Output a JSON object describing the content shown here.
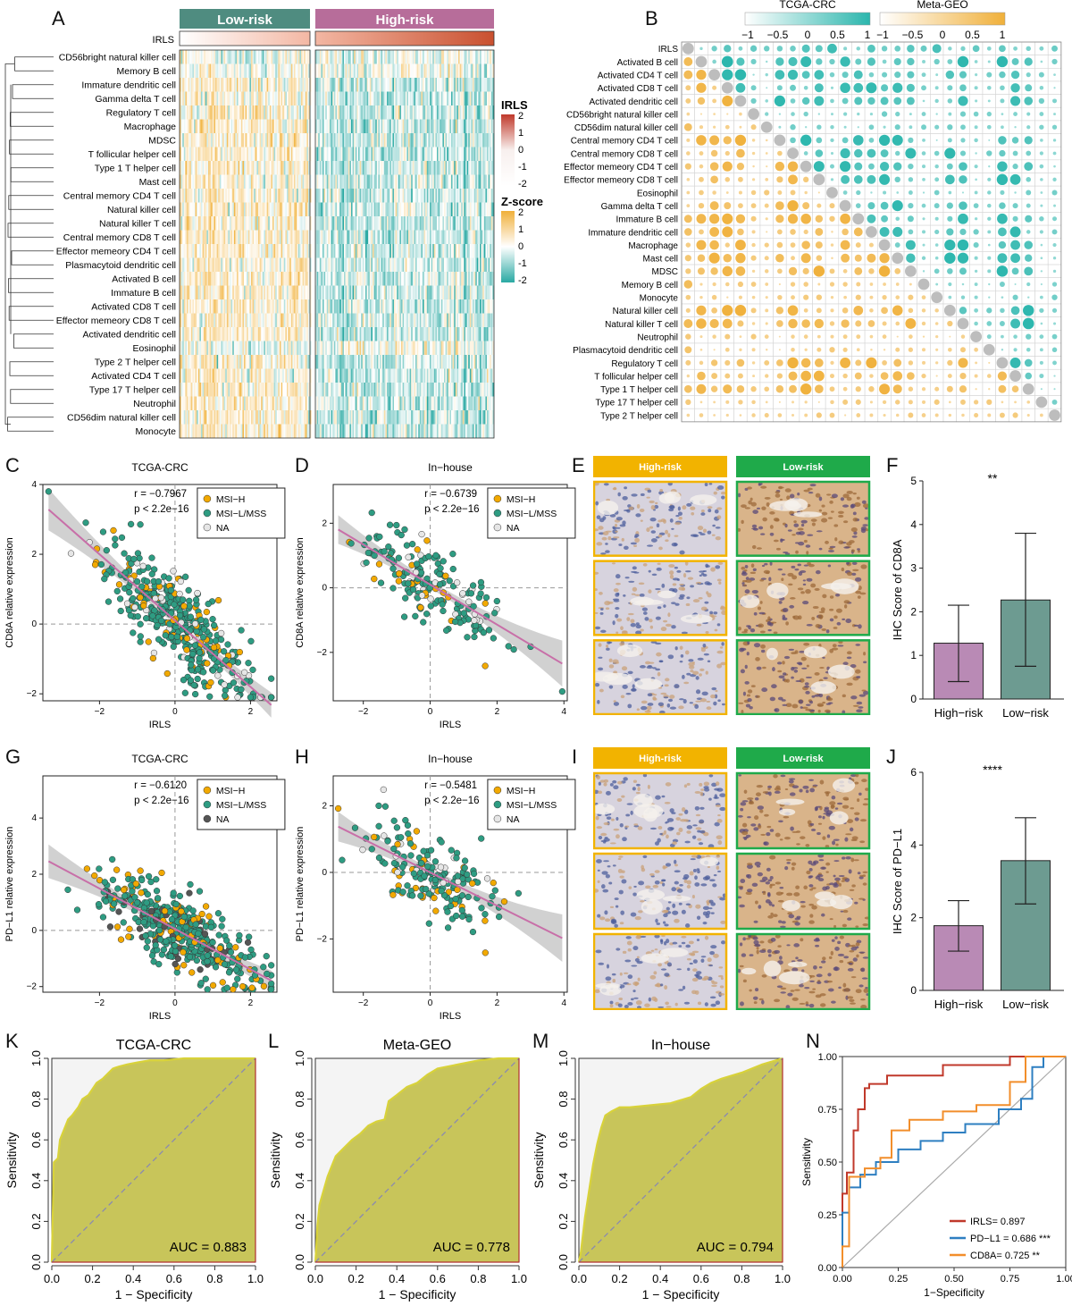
{
  "panelA": {
    "letter": "A",
    "groups": [
      "Low-risk",
      "High-risk"
    ],
    "group_colors": [
      "#4f8c80",
      "#b76d9a"
    ],
    "annotation_label": "IRLS",
    "rows": [
      "CD56bright natural killer cell",
      "Memory B cell",
      "Immature dendritic cell",
      "Gamma delta T cell",
      "Regulatory T cell",
      "Macrophage",
      "MDSC",
      "T follicular helper cell",
      "Type 1 T helper cell",
      "Mast cell",
      "Central memory CD4 T cell",
      "Natural killer cell",
      "Natural killer T cell",
      "Central memory CD8 T cell",
      "Effector memeory CD4 T cell",
      "Plasmacytoid dendritic cell",
      "Activated B cell",
      "Immature  B cell",
      "Activated CD8 T cell",
      "Effector memeory CD8 T cell",
      "Activated dendritic cell",
      "Eosinophil",
      "Type 2 T helper cell",
      "Activated CD4 T cell",
      "Type 17 T helper cell",
      "Neutrophil",
      "CD56dim natural killer cell",
      "Monocyte"
    ],
    "legend_irls": {
      "title": "IRLS",
      "ticks": [
        "2",
        "1",
        "0",
        "-1",
        "-2"
      ]
    },
    "legend_z": {
      "title": "Z-score",
      "ticks": [
        "2",
        "1",
        "0",
        "-1",
        "-2"
      ]
    }
  },
  "panelB": {
    "letter": "B",
    "legend1": {
      "title": "TCGA-CRC",
      "ticks": [
        "−1",
        "−0.5",
        "0",
        "0.5",
        "1"
      ],
      "color": "#2bb6ad"
    },
    "legend2": {
      "title": "Meta-GEO",
      "ticks": [
        "−1",
        "−0.5",
        "0",
        "0.5",
        "1"
      ],
      "color": "#f0b03a"
    },
    "rows": [
      "IRLS",
      "Activated B cell",
      "Activated CD4 T cell",
      "Activated CD8 T cell",
      "Activated dendritic cell",
      "CD56bright natural killer cell",
      "CD56dim natural killer cell",
      "Central memory CD4 T cell",
      "Central memory CD8 T cell",
      "Effector memeory CD4 T cell",
      "Effector memeory CD8 T cell",
      "Eosinophil",
      "Gamma delta T cell",
      "Immature  B cell",
      "Immature dendritic cell",
      "Macrophage",
      "Mast cell",
      "MDSC",
      "Memory B cell",
      "Monocyte",
      "Natural killer cell",
      "Natural killer T cell",
      "Neutrophil",
      "Plasmacytoid dendritic cell",
      "Regulatory T cell",
      "T follicular helper cell",
      "Type 1 T helper cell",
      "Type 17 T helper cell",
      "Type 2 T helper cell"
    ]
  },
  "chart_data": [
    {
      "id": "C",
      "type": "scatter",
      "title": "TCGA-CRC",
      "xlabel": "IRLS",
      "ylabel": "CD8A relative expression",
      "stat_r": "r = −0.7967",
      "stat_p": "p < 2.2e−16",
      "xlim": [
        -3.5,
        2.7
      ],
      "ylim": [
        -2.2,
        4
      ],
      "xticks": [
        -2,
        0,
        2
      ],
      "yticks": [
        -2,
        0,
        2,
        4
      ],
      "legend": [
        "MSI−H",
        "MSI−L/MSS",
        "NA"
      ],
      "legend_colors": [
        "#f2a900",
        "#2e9c82",
        "#e6e6e6"
      ],
      "fit": {
        "slope": -0.95,
        "intercept": 0.1
      },
      "n": 420,
      "seed": 11
    },
    {
      "id": "D",
      "type": "scatter",
      "title": "In−house",
      "xlabel": "IRLS",
      "ylabel": "CD8A relative expression",
      "stat_r": "r = −0.6739",
      "stat_p": "p < 2.2e−16",
      "xlim": [
        -2.9,
        4.1
      ],
      "ylim": [
        -3.5,
        3.2
      ],
      "xticks": [
        -2,
        0,
        2,
        4
      ],
      "yticks": [
        -2,
        0,
        2
      ],
      "legend": [
        "MSI−H",
        "MSI−L/MSS",
        "NA"
      ],
      "legend_colors": [
        "#f2a900",
        "#2e9c82",
        "#e6e6e6"
      ],
      "fit": {
        "slope": -0.62,
        "intercept": 0.1
      },
      "n": 190,
      "seed": 23
    },
    {
      "id": "F",
      "type": "bar",
      "ylabel": "IHC Score of CD8A",
      "categories": [
        "High−risk",
        "Low−risk"
      ],
      "values": [
        1.28,
        2.27
      ],
      "errors": [
        [
          0.4,
          2.15
        ],
        [
          0.75,
          3.8
        ]
      ],
      "ylim": [
        0,
        5
      ],
      "yticks": [
        0,
        1,
        2,
        3,
        4,
        5
      ],
      "colors": [
        "#b98ab5",
        "#6d9b91"
      ],
      "significance": "**"
    },
    {
      "id": "G",
      "type": "scatter",
      "title": "TCGA-CRC",
      "xlabel": "IRLS",
      "ylabel": "PD−L1 relative expression",
      "stat_r": "r = −0.6120",
      "stat_p": "p < 2.2e−16",
      "xlim": [
        -3.5,
        2.7
      ],
      "ylim": [
        -2.2,
        5.5
      ],
      "xticks": [
        -2,
        0,
        2
      ],
      "yticks": [
        -2,
        0,
        2,
        4
      ],
      "legend": [
        "MSI−H",
        "MSI−L/MSS",
        "NA"
      ],
      "legend_colors": [
        "#f2a900",
        "#2e9c82",
        "#555555"
      ],
      "fit": {
        "slope": -0.72,
        "intercept": 0.05
      },
      "n": 430,
      "seed": 37
    },
    {
      "id": "H",
      "type": "scatter",
      "title": "In−house",
      "xlabel": "IRLS",
      "ylabel": "PD−L1 relative expression",
      "stat_r": "r = −0.5481",
      "stat_p": "p < 2.2e−16",
      "xlim": [
        -2.9,
        4.1
      ],
      "ylim": [
        -3.6,
        2.9
      ],
      "xticks": [
        -2,
        0,
        2,
        4
      ],
      "yticks": [
        -2,
        0,
        2
      ],
      "legend": [
        "MSI−H",
        "MSI−L/MSS",
        "NA"
      ],
      "legend_colors": [
        "#f2a900",
        "#2e9c82",
        "#e6e6e6"
      ],
      "fit": {
        "slope": -0.5,
        "intercept": 0.0
      },
      "n": 190,
      "seed": 51
    },
    {
      "id": "J",
      "type": "bar",
      "ylabel": "IHC Score of PD−L1",
      "categories": [
        "High−risk",
        "Low−risk"
      ],
      "values": [
        1.78,
        3.57
      ],
      "errors": [
        [
          1.08,
          2.47
        ],
        [
          2.38,
          4.75
        ]
      ],
      "ylim": [
        0,
        6
      ],
      "yticks": [
        0,
        2,
        4,
        6
      ],
      "colors": [
        "#b98ab5",
        "#6d9b91"
      ],
      "significance": "****"
    },
    {
      "id": "K",
      "type": "area",
      "title": "TCGA-CRC",
      "xlabel": "1 − Specificity",
      "ylabel": "Sensitivity",
      "auc": "AUC = 0.883",
      "x": [
        0,
        0.01,
        0.03,
        0.04,
        0.06,
        0.08,
        0.1,
        0.13,
        0.15,
        0.18,
        0.2,
        0.22,
        0.25,
        0.28,
        0.3,
        0.33,
        0.37,
        0.42,
        0.48,
        0.55,
        0.65,
        0.75,
        0.85,
        1.0
      ],
      "y": [
        0,
        0.49,
        0.51,
        0.6,
        0.65,
        0.7,
        0.72,
        0.76,
        0.8,
        0.82,
        0.85,
        0.88,
        0.9,
        0.93,
        0.95,
        0.96,
        0.97,
        0.98,
        0.99,
        0.99,
        1.0,
        1.0,
        1.0,
        1.0
      ],
      "ticks": [
        "0.0",
        "0.2",
        "0.4",
        "0.6",
        "0.8",
        "1.0"
      ]
    },
    {
      "id": "L",
      "type": "area",
      "title": "Meta-GEO",
      "xlabel": "1 − Specificity",
      "ylabel": "Sensitivity",
      "auc": "AUC = 0.778",
      "x": [
        0,
        0.005,
        0.01,
        0.02,
        0.04,
        0.06,
        0.08,
        0.1,
        0.14,
        0.18,
        0.22,
        0.26,
        0.3,
        0.34,
        0.36,
        0.4,
        0.45,
        0.5,
        0.55,
        0.6,
        0.7,
        0.8,
        0.9,
        1.0
      ],
      "y": [
        0,
        0.08,
        0.18,
        0.28,
        0.35,
        0.42,
        0.47,
        0.52,
        0.56,
        0.6,
        0.63,
        0.67,
        0.69,
        0.7,
        0.79,
        0.82,
        0.86,
        0.88,
        0.92,
        0.95,
        0.97,
        0.99,
        1.0,
        1.0
      ],
      "ticks": [
        "0.0",
        "0.2",
        "0.4",
        "0.6",
        "0.8",
        "1.0"
      ]
    },
    {
      "id": "M",
      "type": "area",
      "title": "In−house",
      "xlabel": "1 − Specificity",
      "ylabel": "Sensitivity",
      "auc": "AUC = 0.794",
      "x": [
        0,
        0.01,
        0.03,
        0.05,
        0.07,
        0.09,
        0.11,
        0.13,
        0.16,
        0.2,
        0.25,
        0.35,
        0.45,
        0.55,
        0.6,
        0.65,
        0.7,
        0.8,
        0.9,
        1.0
      ],
      "y": [
        0,
        0.05,
        0.22,
        0.35,
        0.48,
        0.58,
        0.66,
        0.72,
        0.74,
        0.76,
        0.76,
        0.77,
        0.78,
        0.81,
        0.85,
        0.88,
        0.9,
        0.93,
        0.97,
        1.0
      ],
      "ticks": [
        "0.0",
        "0.2",
        "0.4",
        "0.6",
        "0.8",
        "1.0"
      ]
    },
    {
      "id": "N",
      "type": "line",
      "xlabel": "1−Specificity",
      "ylabel": "Sensitivity",
      "xticks": [
        "0.00",
        "0.25",
        "0.50",
        "0.75",
        "1.00"
      ],
      "yticks": [
        "0.00",
        "0.25",
        "0.50",
        "0.75",
        "1.00"
      ],
      "series": [
        {
          "name": "IRLS= 0.897",
          "color": "#c0392b",
          "x": [
            0,
            0,
            0.02,
            0.02,
            0.05,
            0.05,
            0.07,
            0.07,
            0.1,
            0.1,
            0.12,
            0.12,
            0.2,
            0.2,
            0.45,
            0.45,
            0.75,
            0.75,
            1.0
          ],
          "y": [
            0,
            0.35,
            0.35,
            0.45,
            0.45,
            0.65,
            0.65,
            0.75,
            0.75,
            0.85,
            0.85,
            0.87,
            0.87,
            0.91,
            0.91,
            0.96,
            0.96,
            1.0,
            1.0
          ]
        },
        {
          "name": "PD−L1 = 0.686 ***",
          "color": "#2e7fc1",
          "x": [
            0,
            0,
            0.03,
            0.03,
            0.08,
            0.08,
            0.15,
            0.15,
            0.25,
            0.25,
            0.35,
            0.35,
            0.45,
            0.45,
            0.55,
            0.55,
            0.7,
            0.7,
            0.8,
            0.8,
            0.85,
            0.85,
            0.9,
            0.9,
            1.0
          ],
          "y": [
            0,
            0.26,
            0.26,
            0.38,
            0.38,
            0.44,
            0.44,
            0.5,
            0.5,
            0.56,
            0.56,
            0.6,
            0.6,
            0.64,
            0.64,
            0.68,
            0.68,
            0.75,
            0.75,
            0.8,
            0.8,
            0.95,
            0.95,
            1.0,
            1.0
          ]
        },
        {
          "name": "CD8A= 0.725 **",
          "color": "#f28e2b",
          "x": [
            0,
            0,
            0.03,
            0.03,
            0.1,
            0.1,
            0.17,
            0.17,
            0.22,
            0.22,
            0.3,
            0.3,
            0.45,
            0.45,
            0.6,
            0.6,
            0.75,
            0.75,
            0.82,
            0.82,
            1.0
          ],
          "y": [
            0,
            0.1,
            0.1,
            0.43,
            0.43,
            0.47,
            0.47,
            0.52,
            0.52,
            0.65,
            0.65,
            0.7,
            0.7,
            0.74,
            0.74,
            0.77,
            0.77,
            0.88,
            0.88,
            1.0,
            1.0
          ]
        }
      ]
    }
  ],
  "ihc": {
    "E": {
      "letter": "E",
      "left": "High-risk",
      "right": "Low-risk",
      "left_color": "#f2b300",
      "right_color": "#1faa4a"
    },
    "I": {
      "letter": "I",
      "left": "High-risk",
      "right": "Low-risk",
      "left_color": "#f2b300",
      "right_color": "#1faa4a"
    }
  }
}
